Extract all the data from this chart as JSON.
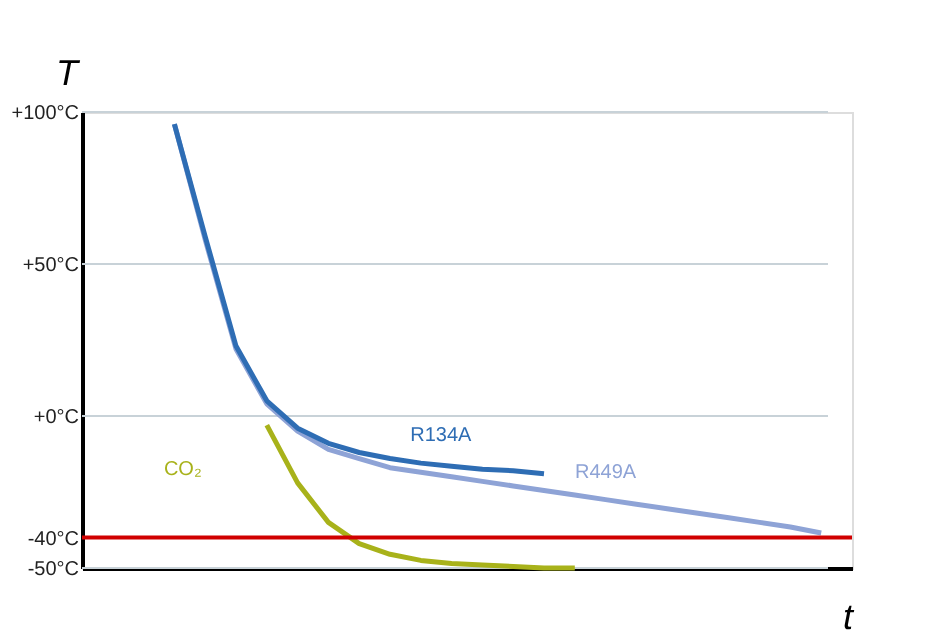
{
  "chart_data": {
    "type": "line",
    "xlabel": "t",
    "ylabel": "T",
    "categories": [
      null,
      null,
      null,
      null,
      null,
      null,
      null,
      null,
      null,
      null,
      null,
      null,
      null,
      null,
      null,
      null,
      null,
      null,
      null,
      null,
      null,
      null,
      null,
      null,
      null,
      null
    ],
    "ylim": [
      -50,
      100
    ],
    "yticks": [
      {
        "value": 100,
        "label": "+100°C"
      },
      {
        "value": 50,
        "label": "+50°C"
      },
      {
        "value": 0,
        "label": "+0°C"
      },
      {
        "value": -40,
        "label": "-40°C"
      },
      {
        "value": -50,
        "label": "-50°C"
      }
    ],
    "tick_labels": "y",
    "grid": "y",
    "legend": false,
    "marker": "none",
    "line_style": "solid",
    "series": [
      {
        "name": "R449A",
        "color": "#8ea3d6",
        "values": [
          null,
          null,
          null,
          96,
          58,
          22,
          4,
          -5,
          -11,
          -14,
          -17,
          -18.5,
          -20,
          -21.5,
          -23,
          -24.5,
          -26,
          -27.5,
          -29,
          -30.5,
          -32,
          -33.5,
          -35,
          -36.5,
          -38.5,
          null
        ]
      },
      {
        "name": "R134A",
        "color": "#2e6db4",
        "values": [
          null,
          null,
          null,
          96,
          59,
          23,
          5,
          -4,
          -9,
          -12,
          -14,
          -15.5,
          -16.5,
          -17.5,
          -18,
          -19,
          null,
          null,
          null,
          null,
          null,
          null,
          null,
          null,
          null,
          null
        ]
      },
      {
        "name": "CO₂",
        "color": "#a8b21a",
        "values": [
          null,
          null,
          null,
          null,
          null,
          null,
          -3,
          -22,
          -35,
          -42,
          -45.5,
          -47.5,
          -48.5,
          -49,
          -49.5,
          -50,
          -50,
          null,
          null,
          null,
          null,
          null,
          null,
          null,
          null,
          null
        ]
      }
    ],
    "ref_lines": [
      {
        "axis": "y",
        "value": -40,
        "color": "#d00000",
        "line_style": "solid"
      }
    ]
  }
}
